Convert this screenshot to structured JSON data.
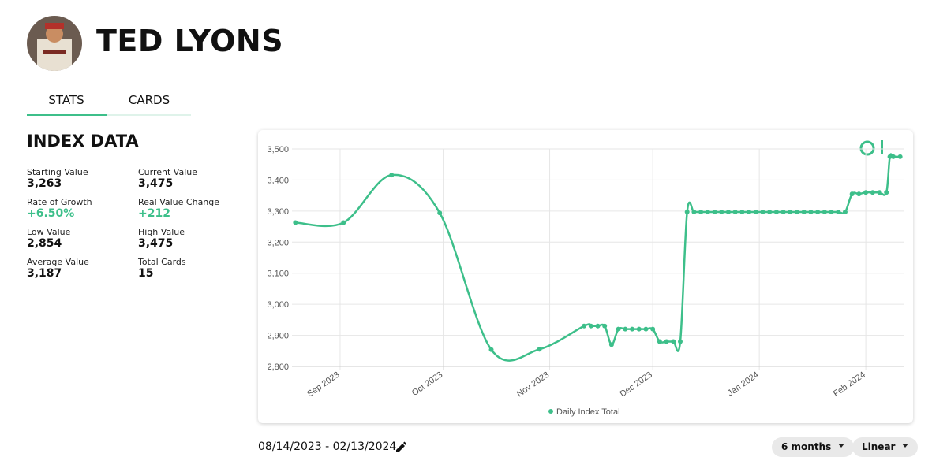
{
  "header": {
    "title": "TED LYONS"
  },
  "tabs": [
    "STATS",
    "CARDS"
  ],
  "section_title": "INDEX DATA",
  "stats": [
    {
      "label": "Starting Value",
      "value": "3,263"
    },
    {
      "label": "Current Value",
      "value": "3,475"
    },
    {
      "label": "Rate of Growth",
      "value": "+6.50%",
      "color": "#3dbf8a"
    },
    {
      "label": "Real Value Change",
      "value": "+212",
      "color": "#3dbf8a"
    },
    {
      "label": "Low Value",
      "value": "2,854"
    },
    {
      "label": "High Value",
      "value": "3,475"
    },
    {
      "label": "Average Value",
      "value": "3,187"
    },
    {
      "label": "Total Cards",
      "value": "15"
    }
  ],
  "chart_data": {
    "type": "line",
    "x": [
      "2023-08-19",
      "2023-09-02",
      "2023-09-16",
      "2023-09-30",
      "2023-10-15",
      "2023-10-29",
      "2023-11-11",
      "2023-11-13",
      "2023-11-15",
      "2023-11-17",
      "2023-11-19",
      "2023-11-21",
      "2023-11-23",
      "2023-11-25",
      "2023-11-27",
      "2023-11-29",
      "2023-12-01",
      "2023-12-03",
      "2023-12-05",
      "2023-12-07",
      "2023-12-09",
      "2023-12-11",
      "2023-12-13",
      "2023-12-15",
      "2023-12-17",
      "2023-12-19",
      "2023-12-21",
      "2023-12-23",
      "2023-12-25",
      "2023-12-27",
      "2023-12-29",
      "2023-12-31",
      "2024-01-02",
      "2024-01-04",
      "2024-01-06",
      "2024-01-08",
      "2024-01-10",
      "2024-01-12",
      "2024-01-14",
      "2024-01-16",
      "2024-01-18",
      "2024-01-20",
      "2024-01-22",
      "2024-01-24",
      "2024-01-26",
      "2024-01-28",
      "2024-01-30",
      "2024-02-01",
      "2024-02-03",
      "2024-02-05",
      "2024-02-07",
      "2024-02-08",
      "2024-02-09",
      "2024-02-11"
    ],
    "series": [
      {
        "name": "Daily Index Total",
        "color": "#3dbf8a",
        "values": [
          3263,
          3263,
          3416,
          3294,
          2854,
          2855,
          2930,
          2930,
          2930,
          2930,
          2870,
          2920,
          2920,
          2920,
          2920,
          2920,
          2920,
          2880,
          2880,
          2880,
          2880,
          3297,
          3297,
          3297,
          3297,
          3297,
          3297,
          3297,
          3297,
          3297,
          3297,
          3297,
          3297,
          3297,
          3297,
          3297,
          3297,
          3297,
          3297,
          3297,
          3297,
          3297,
          3297,
          3297,
          3297,
          3355,
          3355,
          3360,
          3360,
          3360,
          3360,
          3475,
          3475,
          3475
        ]
      }
    ],
    "xlim": [
      "2023-08-18",
      "2024-02-12"
    ],
    "xticks": [
      {
        "value": "2023-09-01",
        "label": "Sep 2023"
      },
      {
        "value": "2023-10-01",
        "label": "Oct 2023"
      },
      {
        "value": "2023-11-01",
        "label": "Nov 2023"
      },
      {
        "value": "2023-12-01",
        "label": "Dec 2023"
      },
      {
        "value": "2024-01-01",
        "label": "Jan 2024"
      },
      {
        "value": "2024-02-01",
        "label": "Feb 2024"
      }
    ],
    "ylim": [
      2800,
      3500
    ],
    "yticks": [
      {
        "value": 2800,
        "label": "2,800"
      },
      {
        "value": 2900,
        "label": "2,900"
      },
      {
        "value": 3000,
        "label": "3,000"
      },
      {
        "value": 3100,
        "label": "3,100"
      },
      {
        "value": 3200,
        "label": "3,200"
      },
      {
        "value": 3300,
        "label": "3,300"
      },
      {
        "value": 3400,
        "label": "3,400"
      },
      {
        "value": 3500,
        "label": "3,500"
      }
    ],
    "grid": true,
    "legend": "bottom"
  },
  "footer": {
    "date_range": "08/14/2023 - 02/13/2024",
    "period": "6 months",
    "scale": "Linear"
  }
}
